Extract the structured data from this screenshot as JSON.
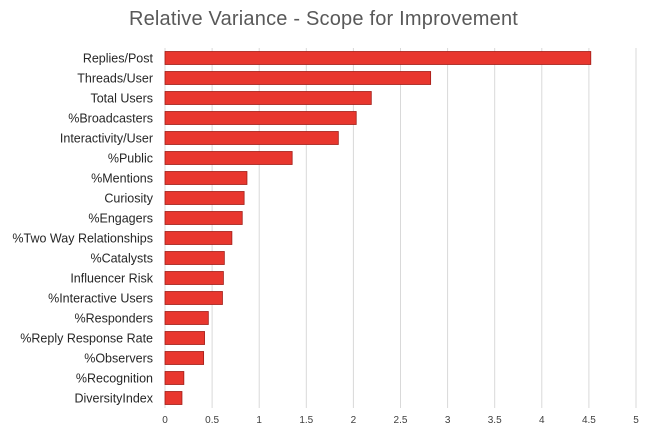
{
  "chart_data": {
    "type": "bar",
    "orientation": "horizontal",
    "title": "Relative Variance - Scope for Improvement",
    "xlabel": "",
    "ylabel": "",
    "categories": [
      "Replies/Post",
      "Threads/User",
      "Total Users",
      "%Broadcasters",
      "Interactivity/User",
      "%Public",
      "%Mentions",
      "Curiosity",
      "%Engagers",
      "%Two Way Relationships",
      "%Catalysts",
      "Influencer Risk",
      "%Interactive Users",
      "%Responders",
      "%Reply Response Rate",
      "%Observers",
      "%Recognition",
      "DiversityIndex"
    ],
    "values": [
      4.52,
      2.82,
      2.19,
      2.03,
      1.84,
      1.35,
      0.87,
      0.84,
      0.82,
      0.71,
      0.63,
      0.62,
      0.61,
      0.46,
      0.42,
      0.41,
      0.2,
      0.18
    ],
    "xlim": [
      0,
      5
    ],
    "xticks": [
      "0",
      "0.5",
      "1",
      "1.5",
      "2",
      "2.5",
      "3",
      "3.5",
      "4",
      "4.5",
      "5"
    ],
    "grid": true,
    "legend": "none",
    "bar_color": "#E8372E",
    "bar_edge_color": "#A11D17",
    "grid_color": "#D9D9D9"
  }
}
